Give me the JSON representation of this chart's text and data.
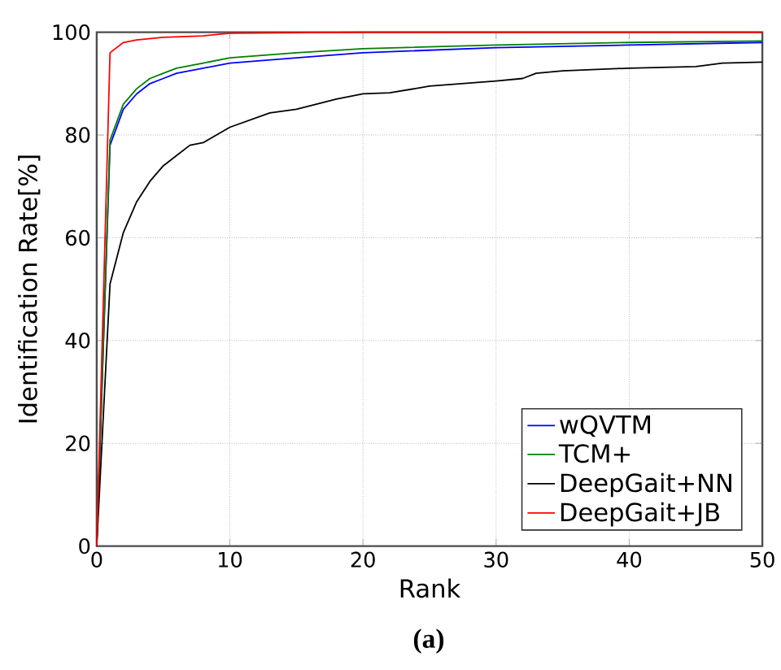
{
  "chart_data": {
    "type": "line",
    "xlabel": "Rank",
    "ylabel": "Identification Rate[%]",
    "annotations": [
      "(a)"
    ],
    "xlim": [
      0,
      50
    ],
    "ylim": [
      0,
      100
    ],
    "xticks": [
      0,
      10,
      20,
      30,
      40,
      50
    ],
    "yticks": [
      0,
      20,
      40,
      60,
      80,
      100
    ],
    "grid": true,
    "legend": "bottom right",
    "line_style": "solid",
    "marker": "none",
    "series": [
      {
        "name": "wQVTM",
        "color": "#0000ff",
        "x": [
          0,
          1,
          2,
          3,
          4,
          5,
          6,
          8,
          10,
          15,
          20,
          30,
          40,
          50
        ],
        "values": [
          0,
          78,
          85,
          88,
          90,
          91,
          92,
          93,
          94,
          95,
          96,
          97,
          97.5,
          98
        ]
      },
      {
        "name": "TCM+",
        "color": "#008000",
        "x": [
          0,
          1,
          2,
          3,
          4,
          5,
          6,
          8,
          10,
          15,
          20,
          30,
          40,
          50
        ],
        "values": [
          0,
          79,
          86,
          89,
          91,
          92,
          93,
          94,
          95,
          96,
          96.8,
          97.5,
          98,
          98.3
        ]
      },
      {
        "name": "DeepGait+NN",
        "color": "#000000",
        "x": [
          0,
          1,
          2,
          3,
          4,
          5,
          6,
          7,
          8,
          10,
          13,
          15,
          18,
          20,
          22,
          25,
          30,
          32,
          33,
          35,
          40,
          45,
          47,
          50
        ],
        "values": [
          0,
          51,
          61,
          67,
          71,
          74,
          76,
          78,
          78.5,
          81.5,
          84.3,
          85,
          87,
          88,
          88.2,
          89.5,
          90.5,
          91,
          92,
          92.5,
          93,
          93.3,
          94,
          94.2
        ]
      },
      {
        "name": "DeepGait+JB",
        "color": "#ff0000",
        "x": [
          0,
          1,
          2,
          3,
          5,
          8,
          10,
          20,
          50
        ],
        "values": [
          0,
          96,
          98,
          98.5,
          99,
          99.3,
          99.8,
          100,
          100
        ]
      }
    ]
  }
}
